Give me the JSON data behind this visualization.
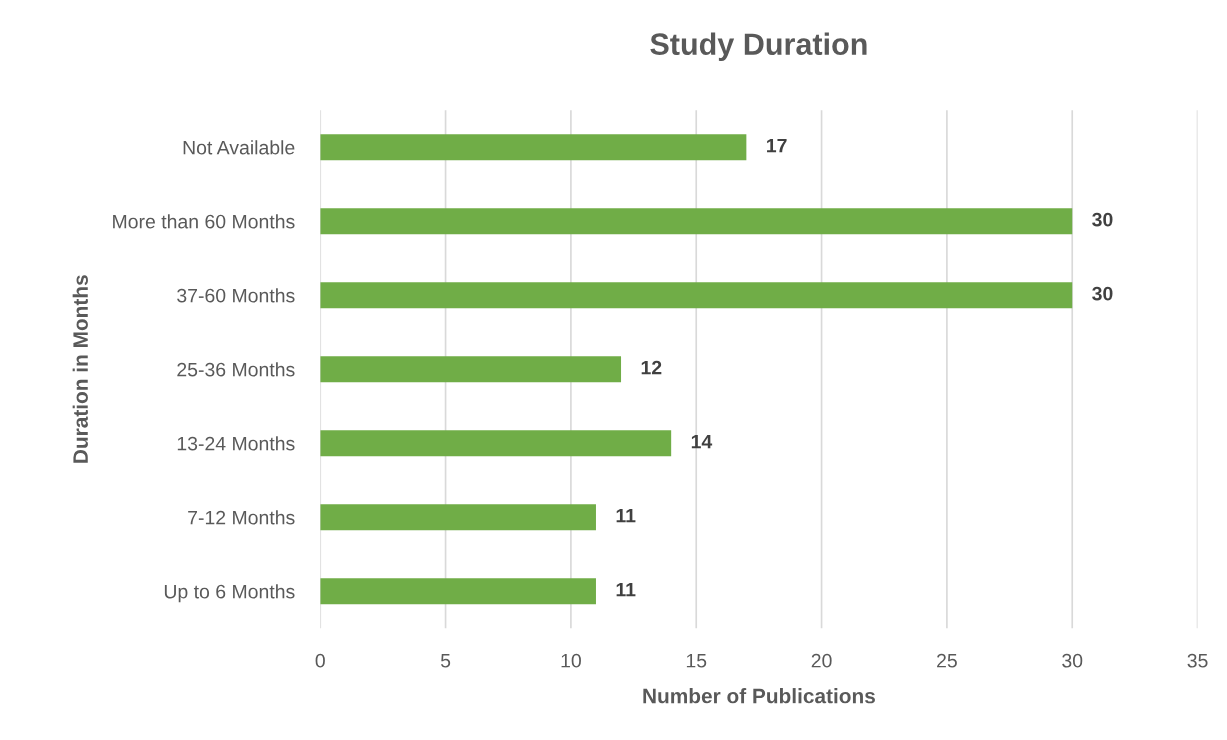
{
  "chart_data": {
    "type": "bar",
    "orientation": "horizontal",
    "title": "Study Duration",
    "xlabel": "Number of Publications",
    "ylabel": "Duration in Months",
    "categories": [
      "Not Available",
      "More than 60 Months",
      "37-60 Months",
      "25-36 Months",
      "13-24 Months",
      "7-12 Months",
      "Up to 6 Months"
    ],
    "values": [
      17,
      30,
      30,
      12,
      14,
      11,
      11
    ],
    "color": "#70ad47",
    "xlim": [
      0,
      35
    ],
    "xticks": [
      0,
      5,
      10,
      15,
      20,
      25,
      30,
      35
    ],
    "grid": "x",
    "data_labels": true
  }
}
